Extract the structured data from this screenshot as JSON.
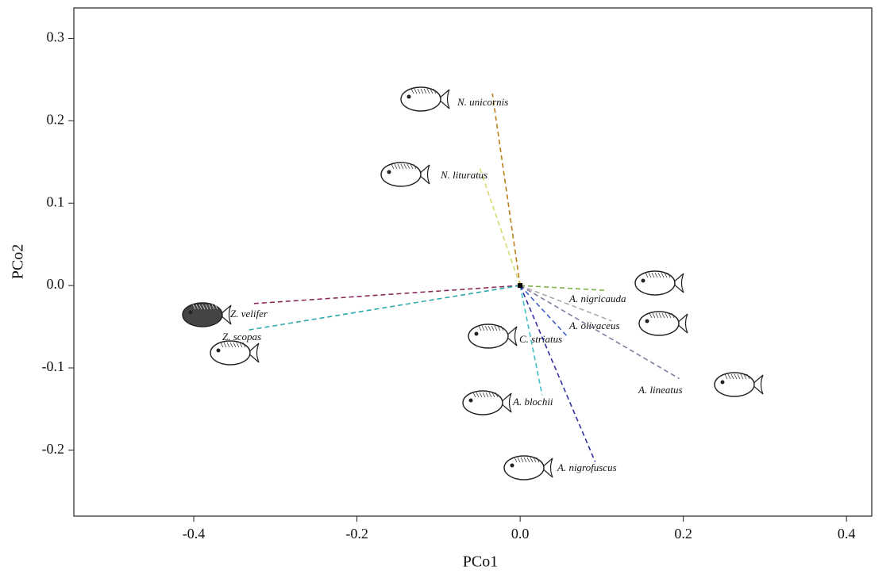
{
  "chart_data": {
    "type": "scatter",
    "x_label": "PCo1",
    "y_label": "PCo2",
    "xlim": [
      -0.547,
      0.431
    ],
    "ylim": [
      -0.28,
      0.337
    ],
    "xticks": [
      -0.4,
      -0.2,
      {
        "value": 0,
        "label": "0.0"
      },
      0.2,
      0.4
    ],
    "yticks": [
      0.3,
      0.2,
      0.1,
      {
        "value": 0,
        "label": "0.0"
      },
      -0.1,
      -0.2
    ],
    "centroid": {
      "x": 0,
      "y": 0
    },
    "series": [
      {
        "name": "N. unicornis",
        "color": "#b8801a",
        "x": [
          -0.034
        ],
        "values": [
          0.233
        ]
      },
      {
        "name": "N. lituratus",
        "color": "#d8d870",
        "x": [
          -0.05
        ],
        "values": [
          0.144
        ]
      },
      {
        "name": "Z. velifer",
        "color": "#8b2a5a",
        "x": [
          -0.328
        ],
        "values": [
          -0.022
        ]
      },
      {
        "name": "Z. scopas",
        "color": "#2aaaaa",
        "x": [
          -0.333
        ],
        "values": [
          -0.054
        ]
      },
      {
        "name": "A. nigricauda",
        "color": "#7cb342",
        "x": [
          0.107
        ],
        "values": [
          -0.006
        ]
      },
      {
        "name": "A. olivaceus",
        "color": "#aaaaaa",
        "x": [
          0.112
        ],
        "values": [
          -0.043
        ]
      },
      {
        "name": "C. striatus",
        "color": "#4060c8",
        "x": [
          0.058
        ],
        "values": [
          -0.062
        ]
      },
      {
        "name": "A. lineatus",
        "color": "#8a7aa0",
        "x": [
          0.195
        ],
        "values": [
          -0.113
        ]
      },
      {
        "name": "A. blochii",
        "color": "#40c0c8",
        "x": [
          0.027
        ],
        "values": [
          -0.133
        ]
      },
      {
        "name": "A. nigrofuscus",
        "color": "#3030a0",
        "x": [
          0.092
        ],
        "values": [
          -0.214
        ]
      }
    ]
  }
}
